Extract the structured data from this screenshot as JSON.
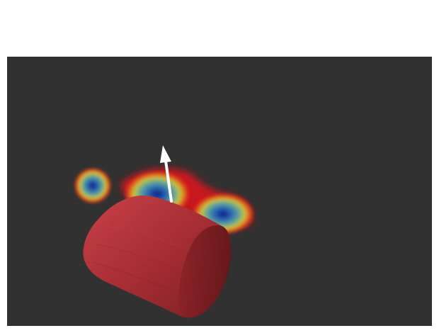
{
  "viewport": {
    "background_color": "#313131",
    "surface_color": "#b3353a",
    "surface_shadow_color": "#6e1a1d",
    "arrow_color": "#ffffff",
    "heatmap_colors": [
      "#0a1a8a",
      "#2d6ab0",
      "#5fa59a",
      "#c9c23a",
      "#e0521b",
      "#d8141b"
    ]
  }
}
